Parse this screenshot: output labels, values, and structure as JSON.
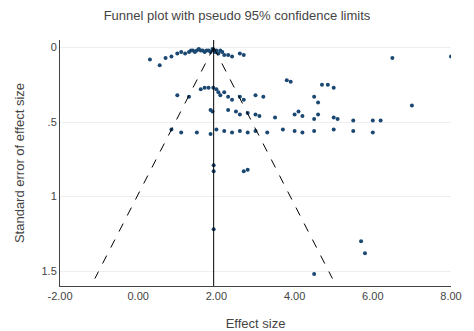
{
  "chart_data": {
    "type": "scatter",
    "title": "Funnel plot with pseudo 95% confidence limits",
    "xlabel": "Effect size",
    "ylabel": "Standard error of effect size",
    "xlim": [
      -2.0,
      8.0
    ],
    "ylim": [
      1.6,
      -0.05
    ],
    "xticks": [
      {
        "value": -2.0,
        "label": "-2.00"
      },
      {
        "value": 0.0,
        "label": "0.00"
      },
      {
        "value": 2.0,
        "label": "2.00"
      },
      {
        "value": 4.0,
        "label": "4.00"
      },
      {
        "value": 6.0,
        "label": "6.00"
      },
      {
        "value": 8.0,
        "label": "8.00"
      }
    ],
    "yticks": [
      0,
      {
        "value": 0.5,
        "label": ".5"
      },
      1,
      1.5
    ],
    "grid": "y",
    "series": [
      {
        "type": "scatter",
        "color": "#1a4872",
        "marker": "circle",
        "x": [
          0.3,
          0.55,
          0.7,
          0.85,
          1.0,
          1.1,
          1.2,
          1.3,
          1.35,
          1.4,
          1.45,
          1.5,
          1.55,
          1.6,
          1.65,
          1.7,
          1.75,
          1.8,
          1.85,
          1.9,
          1.93,
          1.95,
          1.97,
          2.0,
          2.05,
          2.1,
          2.15,
          2.2,
          2.3,
          2.4,
          2.6,
          2.7,
          1.6,
          1.7,
          1.8,
          1.92,
          1.0,
          1.3,
          2.0,
          2.05,
          2.1,
          2.2,
          2.3,
          2.4,
          2.6,
          2.7,
          3.0,
          3.2,
          1.85,
          1.9,
          2.3,
          2.5,
          2.6,
          2.8,
          3.0,
          3.1,
          3.5,
          4.0,
          4.1,
          4.2,
          4.5,
          4.6,
          5.0,
          5.1,
          5.5,
          6.0,
          4.7,
          4.85,
          5.0,
          4.5,
          4.6,
          1.5,
          1.85,
          2.0,
          2.2,
          2.4,
          2.6,
          2.8,
          3.0,
          3.3,
          3.7,
          4.0,
          4.2,
          4.5,
          5.0,
          5.5,
          6.0,
          1.93,
          1.93,
          2.7,
          2.8,
          1.93,
          5.7,
          4.5,
          6.5,
          8.0,
          7.0,
          0.85,
          1.1,
          3.8,
          3.9,
          6.2,
          5.8
        ],
        "values": [
          0.08,
          0.12,
          0.07,
          0.06,
          0.04,
          0.03,
          0.04,
          0.03,
          0.02,
          0.02,
          0.03,
          0.02,
          0.01,
          0.02,
          0.02,
          0.03,
          0.02,
          0.02,
          0.03,
          0.01,
          0.02,
          0.02,
          0.03,
          0.02,
          0.04,
          0.02,
          0.03,
          0.05,
          0.05,
          0.06,
          0.04,
          0.05,
          0.28,
          0.27,
          0.27,
          0.27,
          0.32,
          0.33,
          0.28,
          0.3,
          0.32,
          0.3,
          0.33,
          0.35,
          0.33,
          0.35,
          0.32,
          0.33,
          0.42,
          0.43,
          0.42,
          0.43,
          0.45,
          0.44,
          0.45,
          0.46,
          0.47,
          0.45,
          0.43,
          0.46,
          0.48,
          0.45,
          0.47,
          0.48,
          0.49,
          0.49,
          0.25,
          0.25,
          0.27,
          0.33,
          0.37,
          0.57,
          0.58,
          0.55,
          0.56,
          0.57,
          0.56,
          0.57,
          0.56,
          0.57,
          0.55,
          0.56,
          0.57,
          0.56,
          0.55,
          0.56,
          0.57,
          0.79,
          0.83,
          0.83,
          0.82,
          1.22,
          1.3,
          1.52,
          0.07,
          0.06,
          0.39,
          0.55,
          0.57,
          0.22,
          0.23,
          0.49,
          1.38
        ]
      },
      {
        "type": "line",
        "color": "black",
        "line_style": "dashed",
        "x": [
          1.93,
          -1.108
        ],
        "values": [
          0,
          1.55
        ]
      },
      {
        "type": "line",
        "color": "black",
        "line_style": "dashed",
        "x": [
          1.93,
          4.968
        ],
        "values": [
          0,
          1.55
        ]
      }
    ],
    "reference_lines": [
      {
        "x": 1.93,
        "color": "black"
      }
    ]
  }
}
